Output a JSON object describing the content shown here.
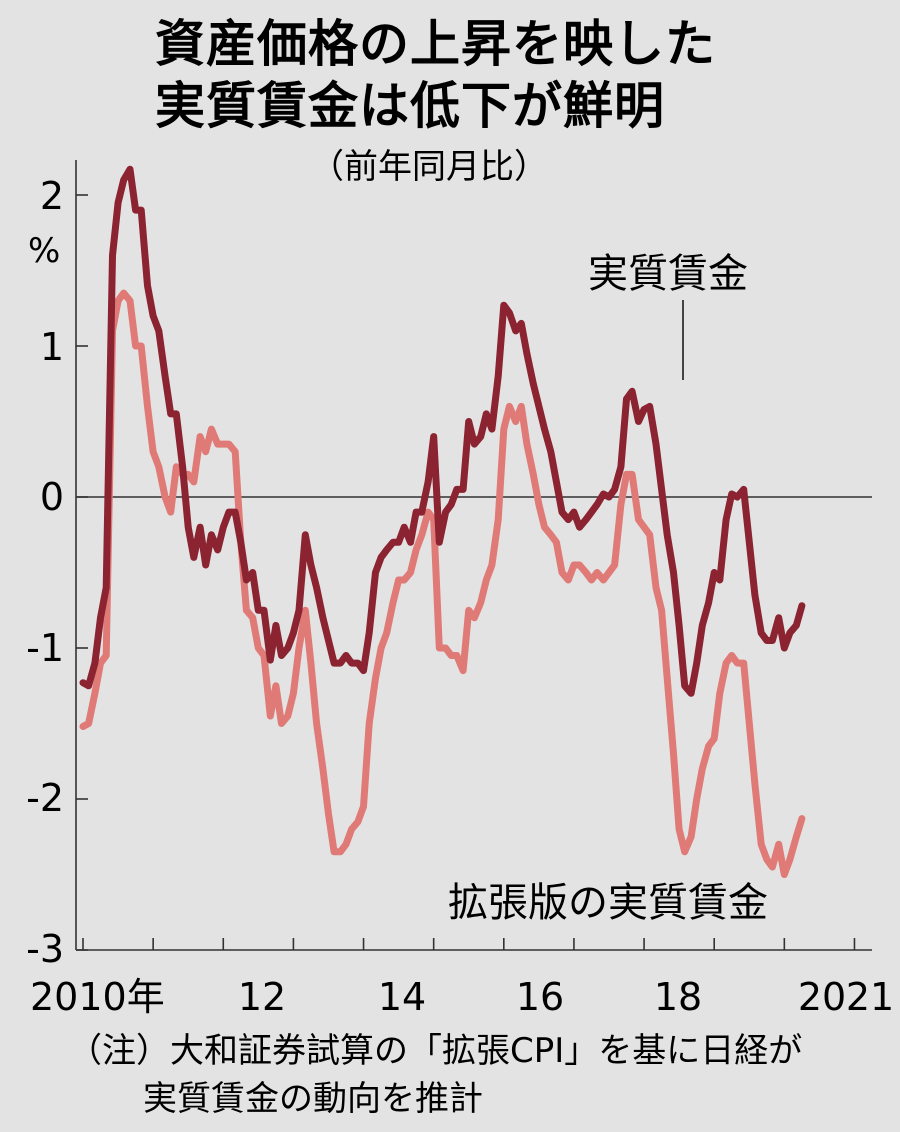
{
  "chart_data": {
    "type": "line",
    "title_lines": [
      "資産価格の上昇を映した",
      "実質賃金は低下が鮮明"
    ],
    "subtitle": "（前年同月比）",
    "ylabel": "%",
    "ylim": [
      -3,
      2.3
    ],
    "yticks": [
      2,
      1,
      0,
      -1,
      -2,
      -3
    ],
    "ytick_labels": [
      "2",
      "1",
      "0",
      "-1",
      "-2",
      "-3"
    ],
    "xlim": [
      2009.9,
      2021.25
    ],
    "xtick_labels": [
      "2010年",
      "12",
      "14",
      "16",
      "18",
      "20",
      "21"
    ],
    "series": [
      {
        "name": "実質賃金",
        "color": "#8b2331",
        "points": [
          [
            2010.0,
            -1.23
          ],
          [
            2010.08,
            -1.25
          ],
          [
            2010.17,
            -1.1
          ],
          [
            2010.25,
            -0.8
          ],
          [
            2010.33,
            -0.6
          ],
          [
            2010.42,
            1.6
          ],
          [
            2010.5,
            1.95
          ],
          [
            2010.58,
            2.1
          ],
          [
            2010.67,
            2.17
          ],
          [
            2010.75,
            1.9
          ],
          [
            2010.83,
            1.9
          ],
          [
            2010.92,
            1.4
          ],
          [
            2011.0,
            1.2
          ],
          [
            2011.08,
            1.1
          ],
          [
            2011.17,
            0.8
          ],
          [
            2011.25,
            0.55
          ],
          [
            2011.33,
            0.55
          ],
          [
            2011.42,
            0.2
          ],
          [
            2011.5,
            -0.2
          ],
          [
            2011.58,
            -0.4
          ],
          [
            2011.67,
            -0.2
          ],
          [
            2011.75,
            -0.45
          ],
          [
            2011.83,
            -0.25
          ],
          [
            2011.92,
            -0.35
          ],
          [
            2012.0,
            -0.2
          ],
          [
            2012.08,
            -0.1
          ],
          [
            2012.17,
            -0.1
          ],
          [
            2012.25,
            -0.3
          ],
          [
            2012.33,
            -0.55
          ],
          [
            2012.42,
            -0.5
          ],
          [
            2012.5,
            -0.75
          ],
          [
            2012.58,
            -0.75
          ],
          [
            2012.67,
            -1.08
          ],
          [
            2012.75,
            -0.85
          ],
          [
            2012.83,
            -1.05
          ],
          [
            2012.92,
            -1.0
          ],
          [
            2013.0,
            -0.9
          ],
          [
            2013.08,
            -0.75
          ],
          [
            2013.17,
            -0.25
          ],
          [
            2013.25,
            -0.45
          ],
          [
            2013.33,
            -0.6
          ],
          [
            2013.42,
            -0.8
          ],
          [
            2013.5,
            -0.95
          ],
          [
            2013.58,
            -1.1
          ],
          [
            2013.67,
            -1.1
          ],
          [
            2013.75,
            -1.05
          ],
          [
            2013.83,
            -1.1
          ],
          [
            2013.92,
            -1.1
          ],
          [
            2014.0,
            -1.15
          ],
          [
            2014.08,
            -0.9
          ],
          [
            2014.17,
            -0.5
          ],
          [
            2014.25,
            -0.4
          ],
          [
            2014.33,
            -0.35
          ],
          [
            2014.42,
            -0.3
          ],
          [
            2014.5,
            -0.3
          ],
          [
            2014.58,
            -0.2
          ],
          [
            2014.67,
            -0.3
          ],
          [
            2014.75,
            -0.1
          ],
          [
            2014.83,
            -0.1
          ],
          [
            2014.92,
            0.1
          ],
          [
            2015.0,
            0.4
          ],
          [
            2015.08,
            -0.3
          ],
          [
            2015.17,
            -0.1
          ],
          [
            2015.25,
            -0.05
          ],
          [
            2015.33,
            0.05
          ],
          [
            2015.42,
            0.05
          ],
          [
            2015.5,
            0.5
          ],
          [
            2015.58,
            0.35
          ],
          [
            2015.67,
            0.4
          ],
          [
            2015.75,
            0.55
          ],
          [
            2015.83,
            0.45
          ],
          [
            2015.92,
            0.8
          ],
          [
            2016.0,
            1.27
          ],
          [
            2016.08,
            1.22
          ],
          [
            2016.17,
            1.1
          ],
          [
            2016.25,
            1.15
          ],
          [
            2016.33,
            0.95
          ],
          [
            2016.42,
            0.75
          ],
          [
            2016.5,
            0.6
          ],
          [
            2016.58,
            0.45
          ],
          [
            2016.67,
            0.3
          ],
          [
            2016.75,
            0.1
          ],
          [
            2016.83,
            -0.1
          ],
          [
            2016.92,
            -0.15
          ],
          [
            2017.0,
            -0.1
          ],
          [
            2017.08,
            -0.2
          ],
          [
            2017.17,
            -0.15
          ],
          [
            2017.25,
            -0.1
          ],
          [
            2017.33,
            -0.05
          ],
          [
            2017.42,
            0.02
          ],
          [
            2017.5,
            0.0
          ],
          [
            2017.58,
            0.05
          ],
          [
            2017.67,
            0.2
          ],
          [
            2017.75,
            0.65
          ],
          [
            2017.83,
            0.7
          ],
          [
            2017.92,
            0.5
          ],
          [
            2018.0,
            0.58
          ],
          [
            2018.08,
            0.6
          ],
          [
            2018.17,
            0.35
          ],
          [
            2018.25,
            0.05
          ],
          [
            2018.33,
            -0.25
          ],
          [
            2018.42,
            -0.5
          ],
          [
            2018.5,
            -0.85
          ],
          [
            2018.58,
            -1.25
          ],
          [
            2018.67,
            -1.3
          ],
          [
            2018.75,
            -1.1
          ],
          [
            2018.83,
            -0.85
          ],
          [
            2018.92,
            -0.7
          ],
          [
            2019.0,
            -0.5
          ],
          [
            2019.08,
            -0.55
          ],
          [
            2019.17,
            -0.15
          ],
          [
            2019.25,
            0.02
          ],
          [
            2019.33,
            0.0
          ],
          [
            2019.42,
            0.05
          ],
          [
            2019.5,
            -0.3
          ],
          [
            2019.58,
            -0.65
          ],
          [
            2019.67,
            -0.9
          ],
          [
            2019.75,
            -0.95
          ],
          [
            2019.83,
            -0.95
          ],
          [
            2019.92,
            -0.8
          ],
          [
            2020.0,
            -1.0
          ],
          [
            2020.08,
            -0.9
          ],
          [
            2020.17,
            -0.85
          ],
          [
            2020.25,
            -0.72
          ]
        ]
      },
      {
        "name": "拡張版の実質賃金",
        "color": "#e07a76",
        "points": [
          [
            2010.0,
            -1.52
          ],
          [
            2010.08,
            -1.5
          ],
          [
            2010.17,
            -1.3
          ],
          [
            2010.25,
            -1.1
          ],
          [
            2010.33,
            -1.05
          ],
          [
            2010.42,
            1.1
          ],
          [
            2010.5,
            1.3
          ],
          [
            2010.58,
            1.35
          ],
          [
            2010.67,
            1.3
          ],
          [
            2010.75,
            1.0
          ],
          [
            2010.83,
            1.0
          ],
          [
            2010.92,
            0.6
          ],
          [
            2011.0,
            0.3
          ],
          [
            2011.08,
            0.2
          ],
          [
            2011.17,
            0.0
          ],
          [
            2011.25,
            -0.1
          ],
          [
            2011.33,
            0.2
          ],
          [
            2011.42,
            0.15
          ],
          [
            2011.5,
            0.15
          ],
          [
            2011.58,
            0.1
          ],
          [
            2011.67,
            0.4
          ],
          [
            2011.75,
            0.3
          ],
          [
            2011.83,
            0.45
          ],
          [
            2011.92,
            0.35
          ],
          [
            2012.0,
            0.35
          ],
          [
            2012.08,
            0.35
          ],
          [
            2012.17,
            0.3
          ],
          [
            2012.25,
            -0.3
          ],
          [
            2012.33,
            -0.75
          ],
          [
            2012.42,
            -0.8
          ],
          [
            2012.5,
            -1.0
          ],
          [
            2012.58,
            -1.05
          ],
          [
            2012.67,
            -1.45
          ],
          [
            2012.75,
            -1.25
          ],
          [
            2012.83,
            -1.5
          ],
          [
            2012.92,
            -1.45
          ],
          [
            2013.0,
            -1.3
          ],
          [
            2013.08,
            -1.0
          ],
          [
            2013.17,
            -0.75
          ],
          [
            2013.25,
            -1.1
          ],
          [
            2013.33,
            -1.5
          ],
          [
            2013.42,
            -1.8
          ],
          [
            2013.5,
            -2.1
          ],
          [
            2013.58,
            -2.35
          ],
          [
            2013.67,
            -2.35
          ],
          [
            2013.75,
            -2.3
          ],
          [
            2013.83,
            -2.2
          ],
          [
            2013.92,
            -2.15
          ],
          [
            2014.0,
            -2.05
          ],
          [
            2014.08,
            -1.5
          ],
          [
            2014.17,
            -1.2
          ],
          [
            2014.25,
            -1.0
          ],
          [
            2014.33,
            -0.9
          ],
          [
            2014.42,
            -0.7
          ],
          [
            2014.5,
            -0.55
          ],
          [
            2014.58,
            -0.55
          ],
          [
            2014.67,
            -0.5
          ],
          [
            2014.75,
            -0.35
          ],
          [
            2014.83,
            -0.25
          ],
          [
            2014.92,
            -0.1
          ],
          [
            2015.0,
            -0.15
          ],
          [
            2015.08,
            -1.0
          ],
          [
            2015.17,
            -1.0
          ],
          [
            2015.25,
            -1.05
          ],
          [
            2015.33,
            -1.05
          ],
          [
            2015.42,
            -1.15
          ],
          [
            2015.5,
            -0.75
          ],
          [
            2015.58,
            -0.8
          ],
          [
            2015.67,
            -0.7
          ],
          [
            2015.75,
            -0.55
          ],
          [
            2015.83,
            -0.45
          ],
          [
            2015.92,
            -0.15
          ],
          [
            2016.0,
            0.45
          ],
          [
            2016.08,
            0.6
          ],
          [
            2016.17,
            0.5
          ],
          [
            2016.25,
            0.6
          ],
          [
            2016.33,
            0.35
          ],
          [
            2016.42,
            0.15
          ],
          [
            2016.5,
            -0.05
          ],
          [
            2016.58,
            -0.2
          ],
          [
            2016.67,
            -0.25
          ],
          [
            2016.75,
            -0.3
          ],
          [
            2016.83,
            -0.5
          ],
          [
            2016.92,
            -0.55
          ],
          [
            2017.0,
            -0.45
          ],
          [
            2017.08,
            -0.45
          ],
          [
            2017.17,
            -0.5
          ],
          [
            2017.25,
            -0.55
          ],
          [
            2017.33,
            -0.5
          ],
          [
            2017.42,
            -0.55
          ],
          [
            2017.5,
            -0.5
          ],
          [
            2017.58,
            -0.45
          ],
          [
            2017.67,
            -0.05
          ],
          [
            2017.75,
            0.15
          ],
          [
            2017.83,
            0.15
          ],
          [
            2017.92,
            -0.15
          ],
          [
            2018.0,
            -0.2
          ],
          [
            2018.08,
            -0.25
          ],
          [
            2018.17,
            -0.6
          ],
          [
            2018.25,
            -0.75
          ],
          [
            2018.33,
            -1.2
          ],
          [
            2018.42,
            -1.7
          ],
          [
            2018.5,
            -2.2
          ],
          [
            2018.58,
            -2.35
          ],
          [
            2018.67,
            -2.25
          ],
          [
            2018.75,
            -2.0
          ],
          [
            2018.83,
            -1.8
          ],
          [
            2018.92,
            -1.65
          ],
          [
            2019.0,
            -1.6
          ],
          [
            2019.08,
            -1.3
          ],
          [
            2019.17,
            -1.1
          ],
          [
            2019.25,
            -1.05
          ],
          [
            2019.33,
            -1.1
          ],
          [
            2019.42,
            -1.1
          ],
          [
            2019.5,
            -1.5
          ],
          [
            2019.58,
            -1.9
          ],
          [
            2019.67,
            -2.3
          ],
          [
            2019.75,
            -2.4
          ],
          [
            2019.83,
            -2.45
          ],
          [
            2019.92,
            -2.3
          ],
          [
            2020.0,
            -2.5
          ],
          [
            2020.08,
            -2.4
          ],
          [
            2020.17,
            -2.25
          ],
          [
            2020.25,
            -2.13
          ]
        ]
      }
    ],
    "annotations": {
      "real_wage_label": "実質賃金",
      "extended_label": "拡張版の実質賃金"
    },
    "note_lines": [
      "（注）大和証券試算の「拡張CPI」を基に日経が",
      "実質賃金の動向を推計"
    ]
  }
}
